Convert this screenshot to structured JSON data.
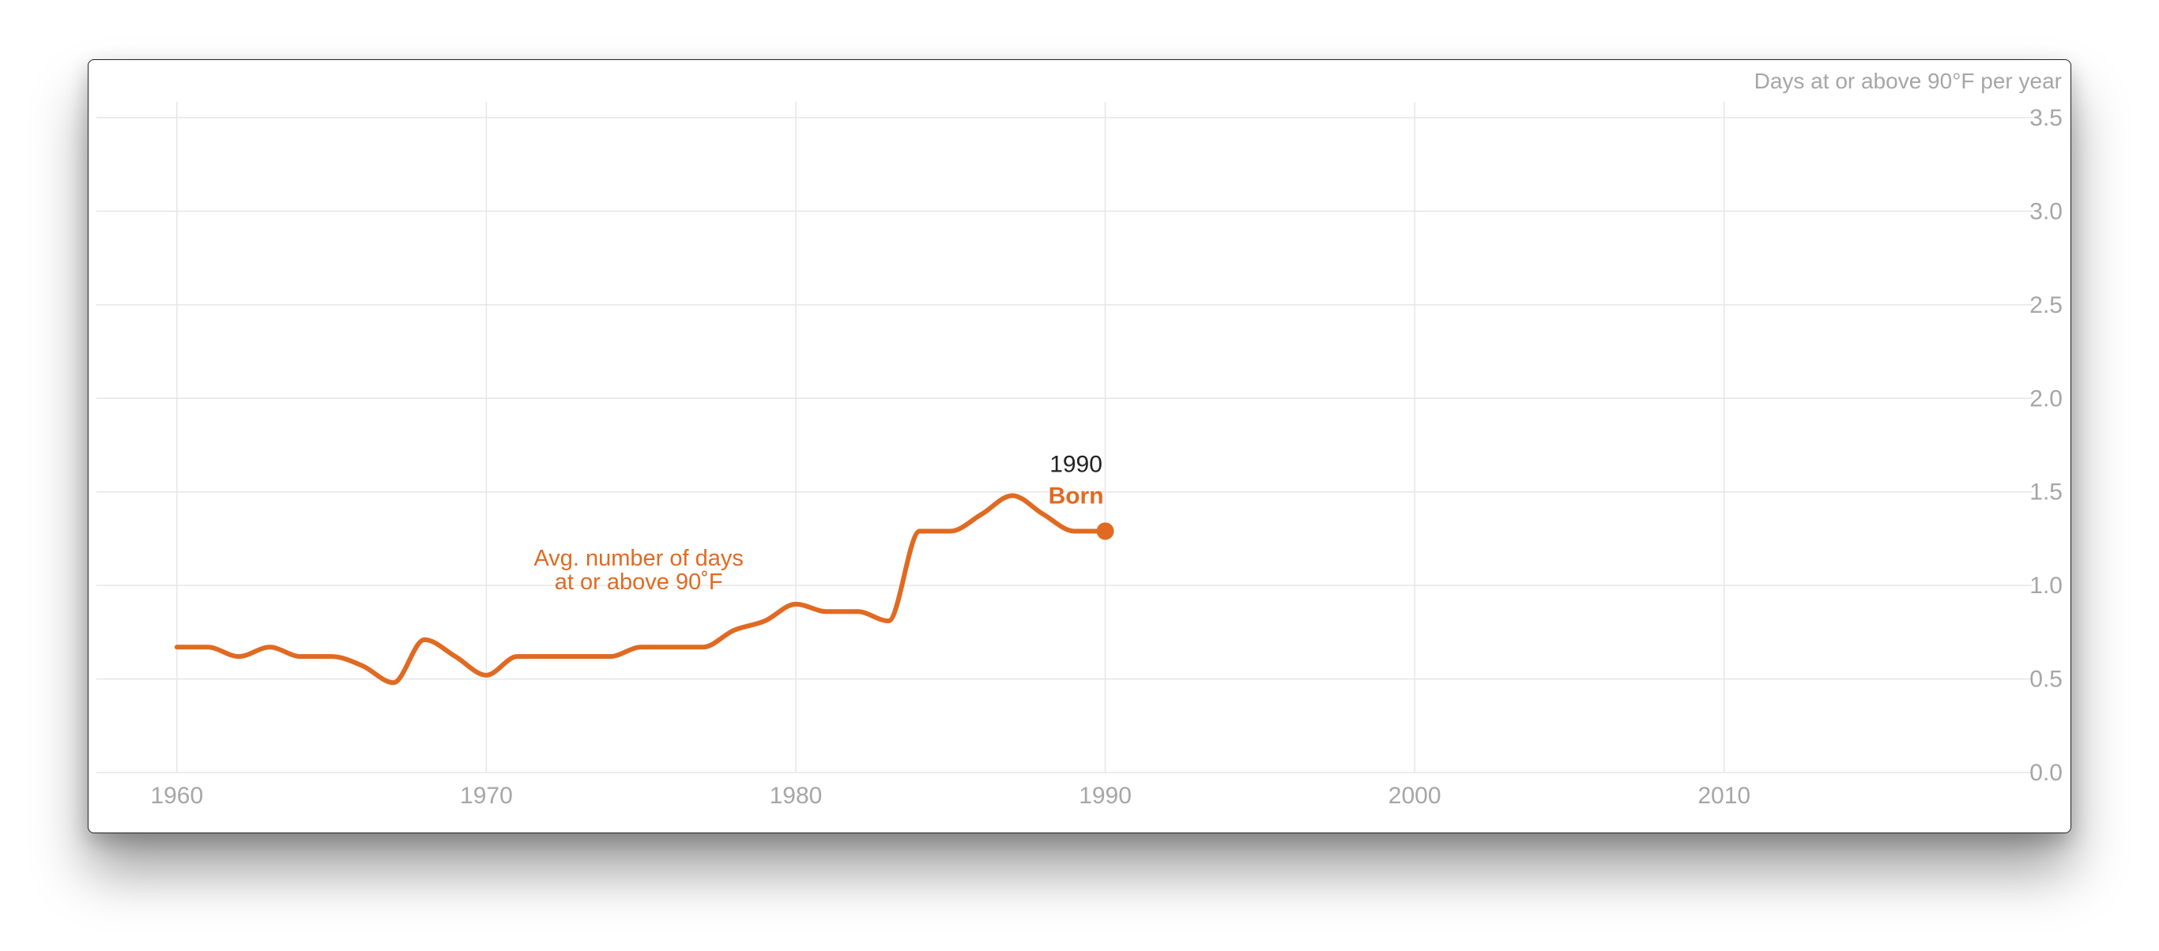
{
  "chart_data": {
    "type": "line",
    "title": "",
    "ylabel": "Days at or above 90°F per year",
    "xlabel": "",
    "xlim": [
      1957.4,
      2019.2
    ],
    "ylim": [
      0,
      3.5
    ],
    "x_ticks": [
      "1960",
      "1970",
      "1980",
      "1990",
      "2000",
      "2010"
    ],
    "y_ticks": [
      "0.0",
      "0.5",
      "1.0",
      "1.5",
      "2.0",
      "2.5",
      "3.0",
      "3.5"
    ],
    "grid": true,
    "y_axis_position": "right",
    "series": [
      {
        "name": "Avg. number of days at or above 90˚F",
        "color": "#e06a22",
        "x": [
          1960,
          1961,
          1962,
          1963,
          1964,
          1965,
          1966,
          1967,
          1968,
          1969,
          1970,
          1971,
          1972,
          1973,
          1974,
          1975,
          1976,
          1977,
          1978,
          1979,
          1980,
          1981,
          1982,
          1983,
          1984,
          1985,
          1986,
          1987,
          1988,
          1989,
          1990
        ],
        "y": [
          0.67,
          0.67,
          0.62,
          0.67,
          0.62,
          0.62,
          0.57,
          0.48,
          0.71,
          0.62,
          0.52,
          0.62,
          0.62,
          0.62,
          0.62,
          0.67,
          0.67,
          0.67,
          0.76,
          0.81,
          0.9,
          0.86,
          0.86,
          0.81,
          1.29,
          1.29,
          1.38,
          1.48,
          1.38,
          1.29,
          1.29
        ]
      }
    ],
    "annotations": [
      {
        "kind": "series-label",
        "lines": [
          "Avg. number of days",
          "at or above 90˚F"
        ],
        "color": "#e06a22",
        "x": 1975,
        "y": 1.0
      },
      {
        "kind": "point",
        "year_label": "1990",
        "event_label": "Born",
        "x": 1990,
        "y": 1.29,
        "color": "#e06a22"
      }
    ],
    "colors": {
      "line": "#e06a22",
      "grid": "#e6e6e6",
      "tick_text": "#a6a6a6",
      "annotation_text": "#222222"
    }
  }
}
